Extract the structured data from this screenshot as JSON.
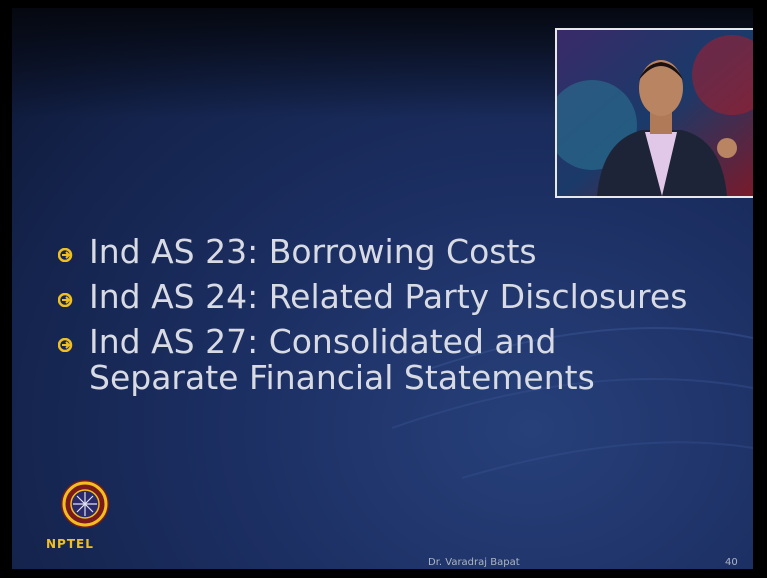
{
  "slide": {
    "bullets": [
      "Ind AS 23: Borrowing Costs",
      "Ind AS 24: Related Party Disclosures",
      "Ind AS 27: Consolidated and Separate Financial Statements"
    ],
    "logo": {
      "label": "NPTEL"
    },
    "footer": {
      "presenter": "Dr. Varadraj Bapat",
      "page_number": 40
    }
  }
}
